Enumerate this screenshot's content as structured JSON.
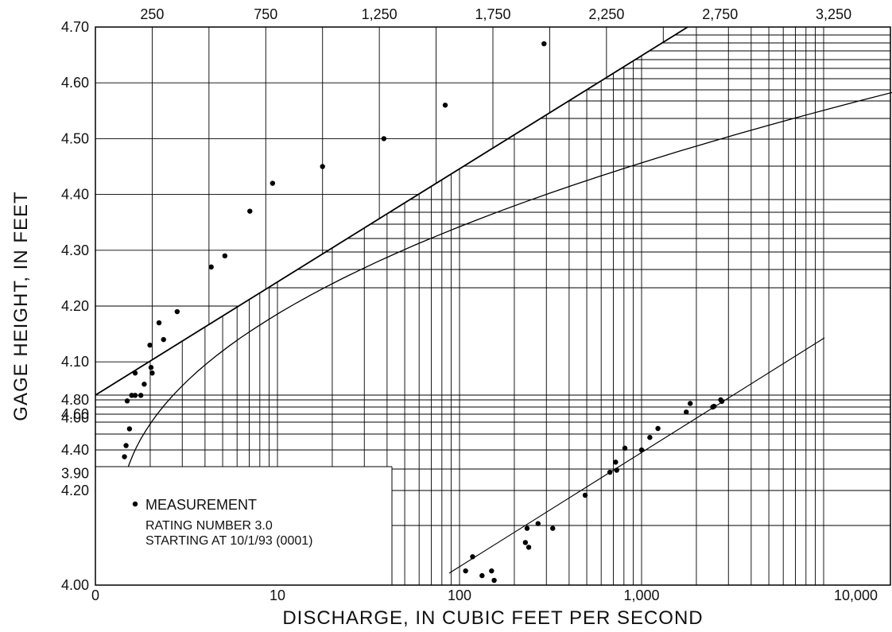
{
  "chart_data": {
    "type": "scatter",
    "title": "",
    "xlabel": "DISCHARGE, IN CUBIC FEET PER SECOND",
    "ylabel": "GAGE HEIGHT, IN FEET",
    "grid": true,
    "legend_position": "bottom-left",
    "legend": {
      "marker_label": "MEASUREMENT",
      "lines": [
        "RATING NUMBER 3.0",
        "STARTING AT 10/1/93 (0001)"
      ]
    },
    "upper_panel": {
      "x_scale": "linear",
      "x_range": [
        0,
        3500
      ],
      "x_tick_labels": [
        "250",
        "750",
        "1,250",
        "1,750",
        "2,250",
        "2,750",
        "3,250"
      ],
      "x_tick_values": [
        250,
        750,
        1250,
        1750,
        2250,
        2750,
        3250
      ],
      "y_range": [
        3.8,
        4.7
      ],
      "y_tick_labels": [
        "3.90",
        "4.00",
        "4.10",
        "4.20",
        "4.30",
        "4.40",
        "4.50",
        "4.60",
        "4.70"
      ],
      "y_tick_values": [
        3.9,
        4.0,
        4.1,
        4.2,
        4.3,
        4.4,
        4.5,
        4.6,
        4.7
      ],
      "series": [
        {
          "points": [
            [
              110,
              3.84
            ],
            [
              120,
              3.87
            ],
            [
              125,
              3.9
            ],
            [
              128,
              3.93
            ],
            [
              135,
              3.95
            ],
            [
              150,
              3.98
            ],
            [
              140,
              4.03
            ],
            [
              160,
              4.04
            ],
            [
              175,
              4.04
            ],
            [
              200,
              4.04
            ],
            [
              175,
              4.08
            ],
            [
              215,
              4.06
            ],
            [
              250,
              4.08
            ],
            [
              245,
              4.09
            ],
            [
              240,
              4.13
            ],
            [
              280,
              4.17
            ],
            [
              300,
              4.14
            ],
            [
              360,
              4.19
            ],
            [
              510,
              4.27
            ],
            [
              570,
              4.29
            ],
            [
              680,
              4.37
            ],
            [
              780,
              4.42
            ],
            [
              1000,
              4.45
            ],
            [
              1270,
              4.5
            ],
            [
              1540,
              4.56
            ],
            [
              1975,
              4.67
            ]
          ]
        }
      ]
    },
    "lower_panel": {
      "x_scale": "log",
      "x_range": [
        1,
        10000
      ],
      "x_tick_labels": [
        "0",
        "10",
        "100",
        "1,000",
        "10,000"
      ],
      "x_tick_values": [
        1,
        10,
        100,
        1000,
        10000
      ],
      "y_scale": "log_offset",
      "y_range": [
        4.0,
        4.88
      ],
      "y_tick_labels": [
        "4.00",
        "4.20",
        "4.40",
        "4.60",
        "4.80"
      ],
      "y_tick_values": [
        4.0,
        4.2,
        4.4,
        4.6,
        4.8
      ],
      "series": [
        {
          "points": [
            [
              108,
              4.03
            ],
            [
              118,
              4.06
            ],
            [
              133,
              4.02
            ],
            [
              150,
              4.03
            ],
            [
              155,
              4.01
            ],
            [
              230,
              4.09
            ],
            [
              235,
              4.12
            ],
            [
              240,
              4.08
            ],
            [
              270,
              4.13
            ],
            [
              325,
              4.12
            ],
            [
              490,
              4.19
            ],
            [
              670,
              4.29
            ],
            [
              730,
              4.3
            ],
            [
              720,
              4.34
            ],
            [
              810,
              4.41
            ],
            [
              1000,
              4.4
            ],
            [
              1110,
              4.47
            ],
            [
              1230,
              4.52
            ],
            [
              1760,
              4.63
            ],
            [
              1850,
              4.75
            ],
            [
              2460,
              4.7
            ],
            [
              2500,
              4.71
            ],
            [
              2720,
              4.8
            ],
            [
              2760,
              4.78
            ]
          ]
        }
      ]
    }
  }
}
